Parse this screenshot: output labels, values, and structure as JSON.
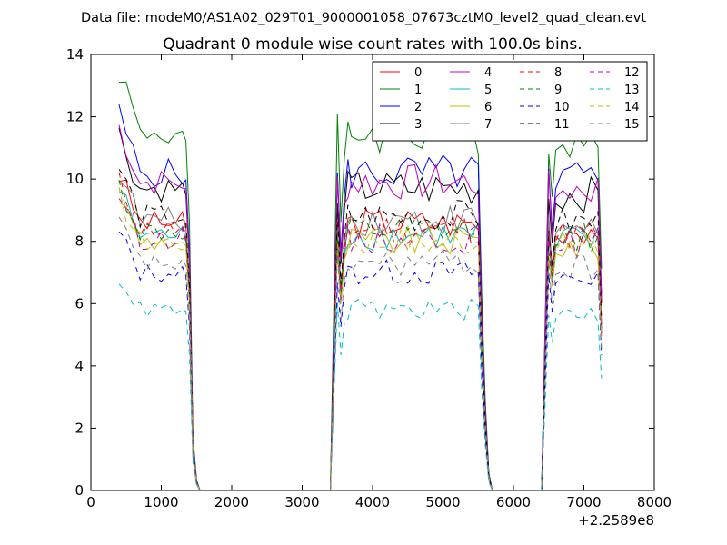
{
  "suptitle": "Data file: modeM0/AS1A02_029T01_9000001058_07673cztM0_level2_quad_clean.evt",
  "chart_data": {
    "type": "line",
    "title": "Quadrant 0 module wise count rates with 100.0s bins.",
    "xlabel": "",
    "ylabel": "",
    "xlim": [
      0,
      8000
    ],
    "ylim": [
      0,
      14
    ],
    "x_ticks": [
      "0",
      "1000",
      "2000",
      "3000",
      "4000",
      "5000",
      "6000",
      "7000",
      "8000"
    ],
    "y_ticks": [
      "0",
      "2",
      "4",
      "6",
      "8",
      "10",
      "12",
      "14"
    ],
    "x_offset_label": "+2.2589e8",
    "grid": false,
    "legend_position": "top-right",
    "legend_columns": 4,
    "x": [
      400,
      500,
      600,
      700,
      800,
      900,
      1000,
      1100,
      1200,
      1300,
      1350,
      1400,
      1450,
      1500,
      1550,
      1600,
      1700,
      1800,
      1900,
      2000,
      2100,
      2200,
      2300,
      2400,
      2500,
      2600,
      2700,
      2800,
      2900,
      3000,
      3100,
      3200,
      3300,
      3400,
      3500,
      3550,
      3600,
      3650,
      3700,
      3800,
      3900,
      4000,
      4100,
      4200,
      4300,
      4400,
      4500,
      4600,
      4700,
      4800,
      4900,
      5000,
      5100,
      5200,
      5300,
      5400,
      5500,
      5550,
      5600,
      5650,
      5700,
      5800,
      5900,
      6000,
      6100,
      6200,
      6300,
      6400,
      6500,
      6550,
      6600,
      6700,
      6800,
      6900,
      7000,
      7100,
      7200,
      7250
    ],
    "series": [
      {
        "name": "0",
        "color": "#ff0000",
        "dash": "solid",
        "level": 8.6
      },
      {
        "name": "1",
        "color": "#008000",
        "dash": "solid",
        "level": 11.5
      },
      {
        "name": "2",
        "color": "#0000ff",
        "dash": "solid",
        "level": 10.2
      },
      {
        "name": "3",
        "color": "#000000",
        "dash": "solid",
        "level": 9.7
      },
      {
        "name": "4",
        "color": "#bf00bf",
        "dash": "solid",
        "level": 9.9
      },
      {
        "name": "5",
        "color": "#00bfbf",
        "dash": "solid",
        "level": 8.2
      },
      {
        "name": "6",
        "color": "#bfbf00",
        "dash": "solid",
        "level": 8.0
      },
      {
        "name": "7",
        "color": "#808080",
        "dash": "solid",
        "level": 8.7
      },
      {
        "name": "8",
        "color": "#ff0000",
        "dash": "dashed",
        "level": 8.4
      },
      {
        "name": "9",
        "color": "#008000",
        "dash": "dashed",
        "level": 8.3
      },
      {
        "name": "10",
        "color": "#0000ff",
        "dash": "dashed",
        "level": 7.0
      },
      {
        "name": "11",
        "color": "#000000",
        "dash": "dashed",
        "level": 8.8
      },
      {
        "name": "12",
        "color": "#bf00bf",
        "dash": "dashed",
        "level": 8.1
      },
      {
        "name": "13",
        "color": "#00bfbf",
        "dash": "dashed",
        "level": 5.8
      },
      {
        "name": "14",
        "color": "#bfbf00",
        "dash": "dashed",
        "level": 8.0
      },
      {
        "name": "15",
        "color": "#808080",
        "dash": "dashed",
        "level": 7.3
      }
    ]
  }
}
